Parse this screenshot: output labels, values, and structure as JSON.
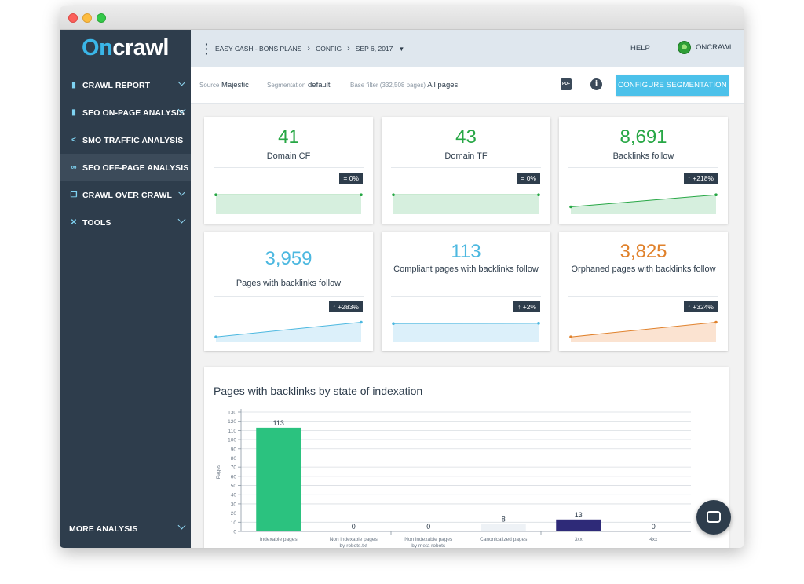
{
  "app": {
    "logo_text": "Oncrawl",
    "logo_part1": "On",
    "logo_part2": "crawl"
  },
  "sidebar": {
    "items": [
      {
        "label": "CRAWL REPORT",
        "icon": "bar-chart-icon",
        "has_chevron": true,
        "active": false
      },
      {
        "label": "SEO ON-PAGE ANALYSIS",
        "icon": "bar-chart-icon",
        "has_chevron": true,
        "active": false
      },
      {
        "label": "SMO TRAFFIC ANALYSIS",
        "icon": "share-icon",
        "has_chevron": false,
        "active": false
      },
      {
        "label": "SEO OFF-PAGE ANALYSIS",
        "icon": "link-icon",
        "has_chevron": false,
        "active": true
      },
      {
        "label": "CRAWL OVER CRAWL",
        "icon": "copy-icon",
        "has_chevron": true,
        "active": false
      },
      {
        "label": "TOOLS",
        "icon": "tools-icon",
        "has_chevron": true,
        "active": false
      }
    ],
    "more_label": "MORE ANALYSIS"
  },
  "topbar": {
    "breadcrumb": [
      "EASY CASH - BONS PLANS",
      "CONFIG",
      "SEP 6, 2017"
    ],
    "help_label": "HELP",
    "account_name": "ONCRAWL"
  },
  "filters": {
    "source_label": "Source",
    "source_value": "Majestic",
    "segmentation_label": "Segmentation",
    "segmentation_value": "default",
    "base_filter_label": "Base filter (332,508 pages)",
    "base_filter_value": "All pages",
    "pdf_text": "PDF",
    "info_text": "i",
    "configure_button": "CONFIGURE SEGMENTATION"
  },
  "colors": {
    "sidebar_bg": "#2e3d4c",
    "accent": "#4cc1ea",
    "green": "#27a745",
    "blue": "#4cb8e0",
    "orange": "#e0812b",
    "bar_green": "#2bc27f",
    "bar_light": "#eef2f6",
    "bar_navy": "#2e2a78"
  },
  "kpis": [
    {
      "value": "41",
      "label": "Domain CF",
      "change": "= 0%",
      "trend": [
        0.7,
        0.7
      ],
      "color": "green"
    },
    {
      "value": "43",
      "label": "Domain TF",
      "change": "= 0%",
      "trend": [
        0.7,
        0.7
      ],
      "color": "green"
    },
    {
      "value": "8,691",
      "label": "Backlinks follow",
      "change": "↑ +218%",
      "trend": [
        0.25,
        0.7
      ],
      "color": "green"
    },
    {
      "value": "3,959",
      "label": "Pages with backlinks follow",
      "change": "↑ +283%",
      "trend": [
        0.2,
        0.75
      ],
      "color": "blue"
    },
    {
      "value": "113",
      "label": "Compliant pages with backlinks follow",
      "change": "↑ +2%",
      "trend": [
        0.7,
        0.71
      ],
      "color": "blue"
    },
    {
      "value": "3,825",
      "label": "Orphaned pages with backlinks follow",
      "change": "↑ +324%",
      "trend": [
        0.2,
        0.75
      ],
      "color": "orange"
    }
  ],
  "chart_data": {
    "type": "bar",
    "title": "Pages with backlinks by state of indexation",
    "ylabel": "Pages",
    "xlabel": "",
    "ylim": [
      0,
      130
    ],
    "yticks": [
      0,
      10,
      20,
      30,
      40,
      50,
      60,
      70,
      80,
      90,
      100,
      110,
      120,
      130
    ],
    "categories": [
      "Indexable pages",
      "Non indexable pages by robots.txt",
      "Non indexable pages by meta robots",
      "Canonicalized pages",
      "3xx",
      "4xx"
    ],
    "category_lines": [
      [
        "Indexable pages"
      ],
      [
        "Non indexable pages",
        "by robots.txt"
      ],
      [
        "Non indexable pages",
        "by meta robots"
      ],
      [
        "Canonicalized pages"
      ],
      [
        "3xx"
      ],
      [
        "4xx"
      ]
    ],
    "values": [
      113,
      0,
      0,
      8,
      13,
      0
    ],
    "bar_colors": [
      "#2bc27f",
      "#2bc27f",
      "#2bc27f",
      "#eef2f6",
      "#2e2a78",
      "#2bc27f"
    ],
    "grid": true
  }
}
